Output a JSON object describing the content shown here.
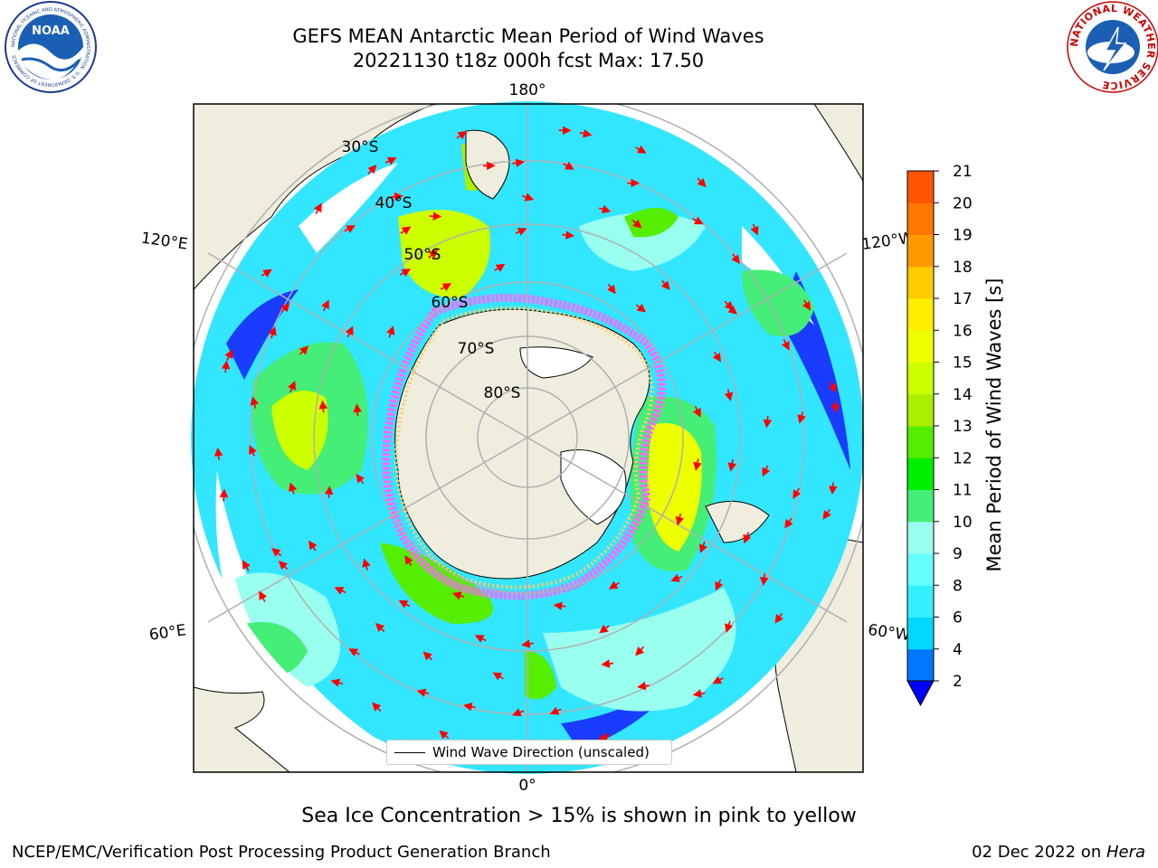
{
  "header": {
    "title_line1": "GEFS MEAN Antarctic Mean Period of Wind Waves",
    "title_line2": "20221130 t18z 000h fcst   Max: 17.50"
  },
  "logos": {
    "left": "NOAA",
    "left_ring_text": "NATIONAL OCEANIC AND ATMOSPHERIC ADMINISTRATION · U.S. DEPARTMENT OF COMMERCE",
    "right_ring_text": "NATIONAL WEATHER SERVICE"
  },
  "map": {
    "lon_labels": {
      "top": "180°",
      "bottom": "0°",
      "left_upper": "120°E",
      "left_lower": "60°E",
      "right_upper": "120°W",
      "right_lower": "60°W"
    },
    "lat_labels": [
      "30°S",
      "40°S",
      "50°S",
      "60°S",
      "70°S",
      "80°S"
    ],
    "legend_text": "Wind Wave Direction (unscaled)",
    "colors": {
      "land": "#efedde",
      "ice_pink": "#ff66ff",
      "ice_yellow": "#ffcc66",
      "arrow": "#ff0000",
      "grid": "#b0b0b0"
    }
  },
  "colorbar": {
    "label": "Mean Period of Wind Waves [s]",
    "ticks": [
      "2",
      "4",
      "6",
      "8",
      "9",
      "10",
      "11",
      "12",
      "13",
      "14",
      "15",
      "16",
      "17",
      "18",
      "19",
      "20",
      "21"
    ],
    "colors": [
      "#0000ff",
      "#0077ff",
      "#00d8ff",
      "#33f0ff",
      "#66ffff",
      "#99ffee",
      "#44ee77",
      "#00ee00",
      "#55ee00",
      "#aaee00",
      "#ccff00",
      "#eeff00",
      "#ffee00",
      "#ffcc00",
      "#ff9900",
      "#ff7700",
      "#ff5500",
      "#ff2200",
      "#ff0000"
    ]
  },
  "caption": "Sea Ice Concentration > 15% is shown in pink to yellow",
  "footer": {
    "left": "NCEP/EMC/Verification Post Processing Product Generation Branch",
    "right_date": "02 Dec 2022 on ",
    "right_host": "Hera"
  }
}
